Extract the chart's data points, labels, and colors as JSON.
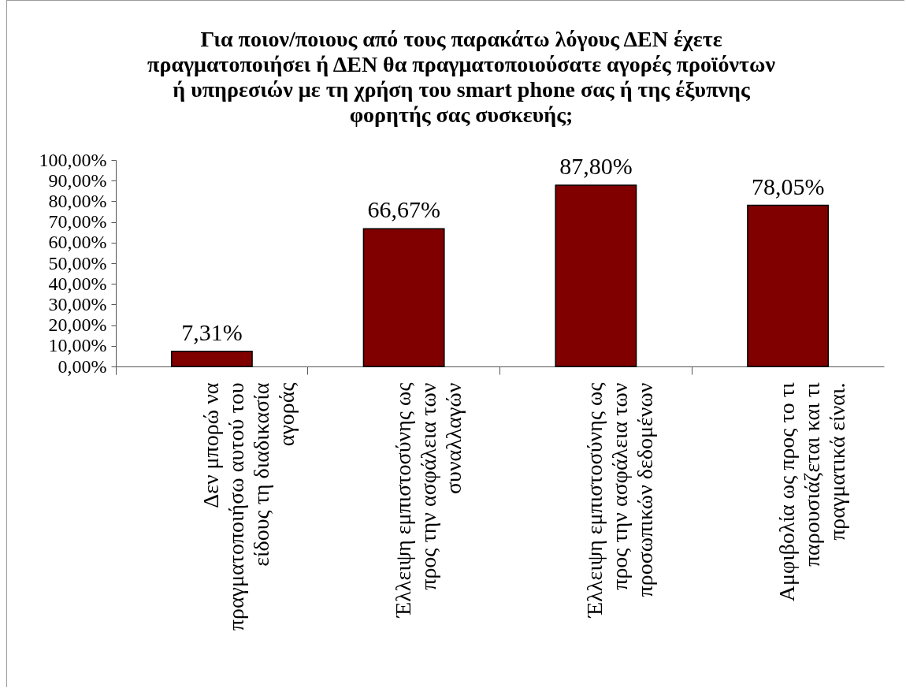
{
  "chart_data": {
    "type": "bar",
    "title": "Για ποιον/ποιους από τους παρακάτω λόγους ΔΕΝ έχετε πραγματοποιήσει ή ΔΕΝ θα πραγματοποιούσατε αγορές προϊόντων ή υπηρεσιών με τη χρήση του smart phone σας ή της έξυπνης φορητής σας συσκευής;",
    "categories": [
      "Δεν μπορώ να πραγματοποιήσω αυτού του είδους τη διαδικασία αγοράς",
      "Έλλειψη εμπιστοσύνης ως προς την ασφάλεια των συναλλαγών",
      "Έλλειψη εμπιστοσύνης ως προς την ασφάλεια των προσωπικών δεδομένων",
      "Αμφιβολία ως προς το τι παρουσιάζεται και τι πραγματικά είναι."
    ],
    "values": [
      7.31,
      66.67,
      87.8,
      78.05
    ],
    "value_labels": [
      "7,31%",
      "66,67%",
      "87,80%",
      "78,05%"
    ],
    "color": "#800000",
    "ylim": [
      0,
      100
    ],
    "yticks": [
      {
        "value": 0,
        "label": "0,00%"
      },
      {
        "value": 10,
        "label": "10,00%"
      },
      {
        "value": 20,
        "label": "20,00%"
      },
      {
        "value": 30,
        "label": "30,00%"
      },
      {
        "value": 40,
        "label": "40,00%"
      },
      {
        "value": 50,
        "label": "50,00%"
      },
      {
        "value": 60,
        "label": "60,00%"
      },
      {
        "value": 70,
        "label": "70,00%"
      },
      {
        "value": 80,
        "label": "80,00%"
      },
      {
        "value": 90,
        "label": "90,00%"
      },
      {
        "value": 100,
        "label": "100,00%"
      }
    ]
  }
}
